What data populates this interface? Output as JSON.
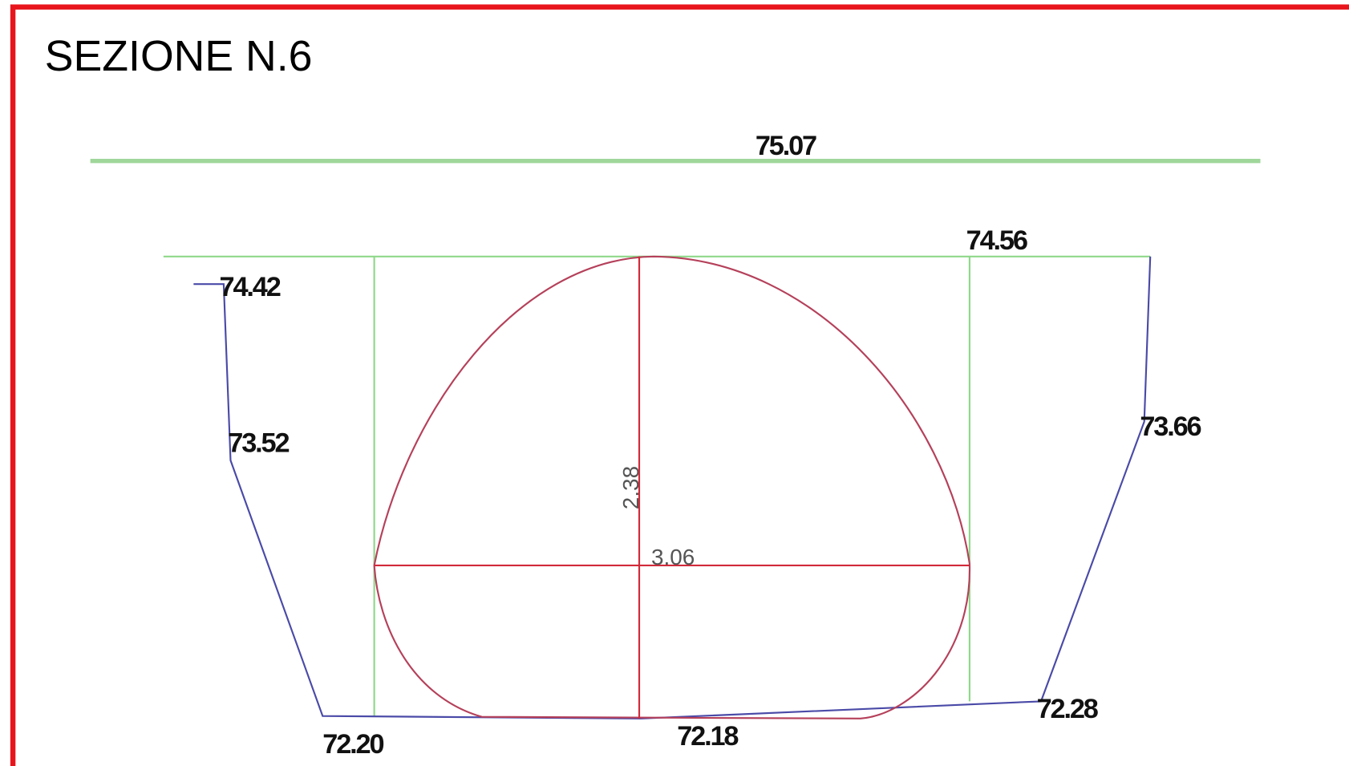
{
  "title": "SEZIONE N.6",
  "levels": {
    "water": "75.07",
    "crown": "74.56",
    "left_bank_top": "74.42",
    "left_bank_mid": "73.52",
    "right_bank_mid": "73.66",
    "left_bottom": "72.20",
    "center_bottom": "72.18",
    "right_bottom": "72.28"
  },
  "dimensions": {
    "height": "2.38",
    "width": "3.06"
  }
}
